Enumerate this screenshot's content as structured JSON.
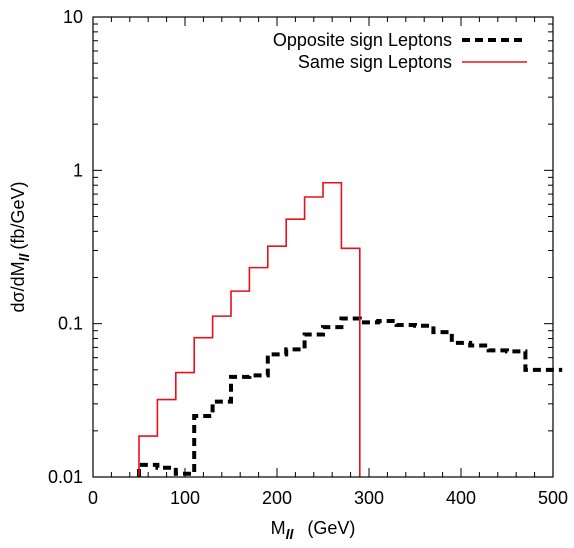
{
  "chart_data": {
    "type": "line",
    "plot_style": "histogram-steps",
    "x_axis": {
      "label_main": "M",
      "label_sub": "ll",
      "label_unit": "(GeV)",
      "range": [
        0,
        500
      ],
      "ticks": [
        0,
        100,
        200,
        300,
        400,
        500
      ],
      "tick_labels": [
        "0",
        "100",
        "200",
        "300",
        "400",
        "500"
      ]
    },
    "y_axis": {
      "label_main": "dσ/dM",
      "label_sub": "ll",
      "label_unit": "(fb/GeV)",
      "scale": "log",
      "range": [
        0.01,
        10
      ],
      "ticks": [
        0.01,
        0.1,
        1,
        10
      ],
      "tick_labels": [
        "0.01",
        "0.1",
        "1",
        "10"
      ]
    },
    "legend": {
      "placement": "top-right",
      "entries": [
        {
          "series": "opposite",
          "label": "Opposite sign Leptons"
        },
        {
          "series": "same",
          "label": "Same sign Leptons"
        }
      ]
    },
    "series": [
      {
        "id": "opposite",
        "name": "Opposite sign Leptons",
        "color": "#000000",
        "style": "dashed",
        "x_start": [
          50,
          70,
          90,
          110,
          130,
          150,
          170,
          190,
          210,
          230,
          250,
          270,
          290,
          310,
          330,
          350,
          370,
          390,
          410,
          430,
          450,
          470,
          490
        ],
        "values": [
          0.012,
          0.0115,
          0.0105,
          0.025,
          0.031,
          0.045,
          0.046,
          0.063,
          0.068,
          0.085,
          0.095,
          0.108,
          0.102,
          0.104,
          0.098,
          0.097,
          0.088,
          0.075,
          0.072,
          0.067,
          0.066,
          0.05,
          0.05
        ]
      },
      {
        "id": "same",
        "name": "Same sign Leptons",
        "color": "#e8101a",
        "style": "solid",
        "x_start": [
          50,
          70,
          90,
          110,
          130,
          150,
          170,
          190,
          210,
          230,
          250,
          270
        ],
        "values": [
          0.0185,
          0.032,
          0.048,
          0.081,
          0.112,
          0.163,
          0.232,
          0.32,
          0.48,
          0.67,
          0.83,
          0.31
        ],
        "drop_to_axis_x": 290
      }
    ]
  }
}
